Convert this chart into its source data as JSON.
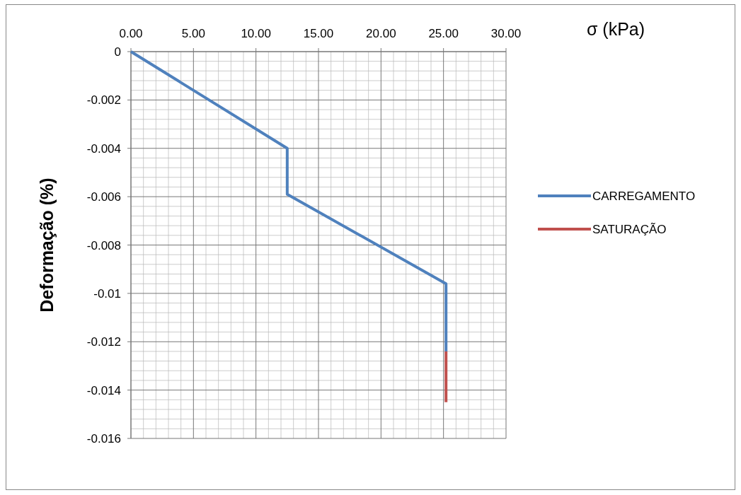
{
  "chart_data": {
    "type": "line",
    "xlabel": "σ (kPa)",
    "ylabel": "Deformação (%)",
    "xlim": [
      0,
      30
    ],
    "xticks": [
      {
        "value": 0,
        "label": "0.00"
      },
      {
        "value": 5,
        "label": "5.00"
      },
      {
        "value": 10,
        "label": "10.00"
      },
      {
        "value": 15,
        "label": "15.00"
      },
      {
        "value": 20,
        "label": "20.00"
      },
      {
        "value": 25,
        "label": "25.00"
      },
      {
        "value": 30,
        "label": "30.00"
      }
    ],
    "ylim": [
      -0.016,
      0
    ],
    "yticks": [
      0,
      -0.002,
      -0.004,
      -0.006,
      -0.008,
      -0.01,
      -0.012,
      -0.014,
      -0.016
    ],
    "grid": true,
    "legend": "right",
    "marker": "none",
    "line_style": "solid",
    "series": [
      {
        "name": "CARREGAMENTO",
        "color": "#4f81bd",
        "x": [
          0,
          12.5,
          12.5,
          25.2,
          25.2
        ],
        "values": [
          0,
          -0.004,
          -0.0059,
          -0.0096,
          -0.0124
        ]
      },
      {
        "name": "SATURAÇÃO",
        "color": "#c0504d",
        "x": [
          25.2,
          25.2
        ],
        "values": [
          -0.0124,
          -0.0145
        ]
      }
    ]
  }
}
